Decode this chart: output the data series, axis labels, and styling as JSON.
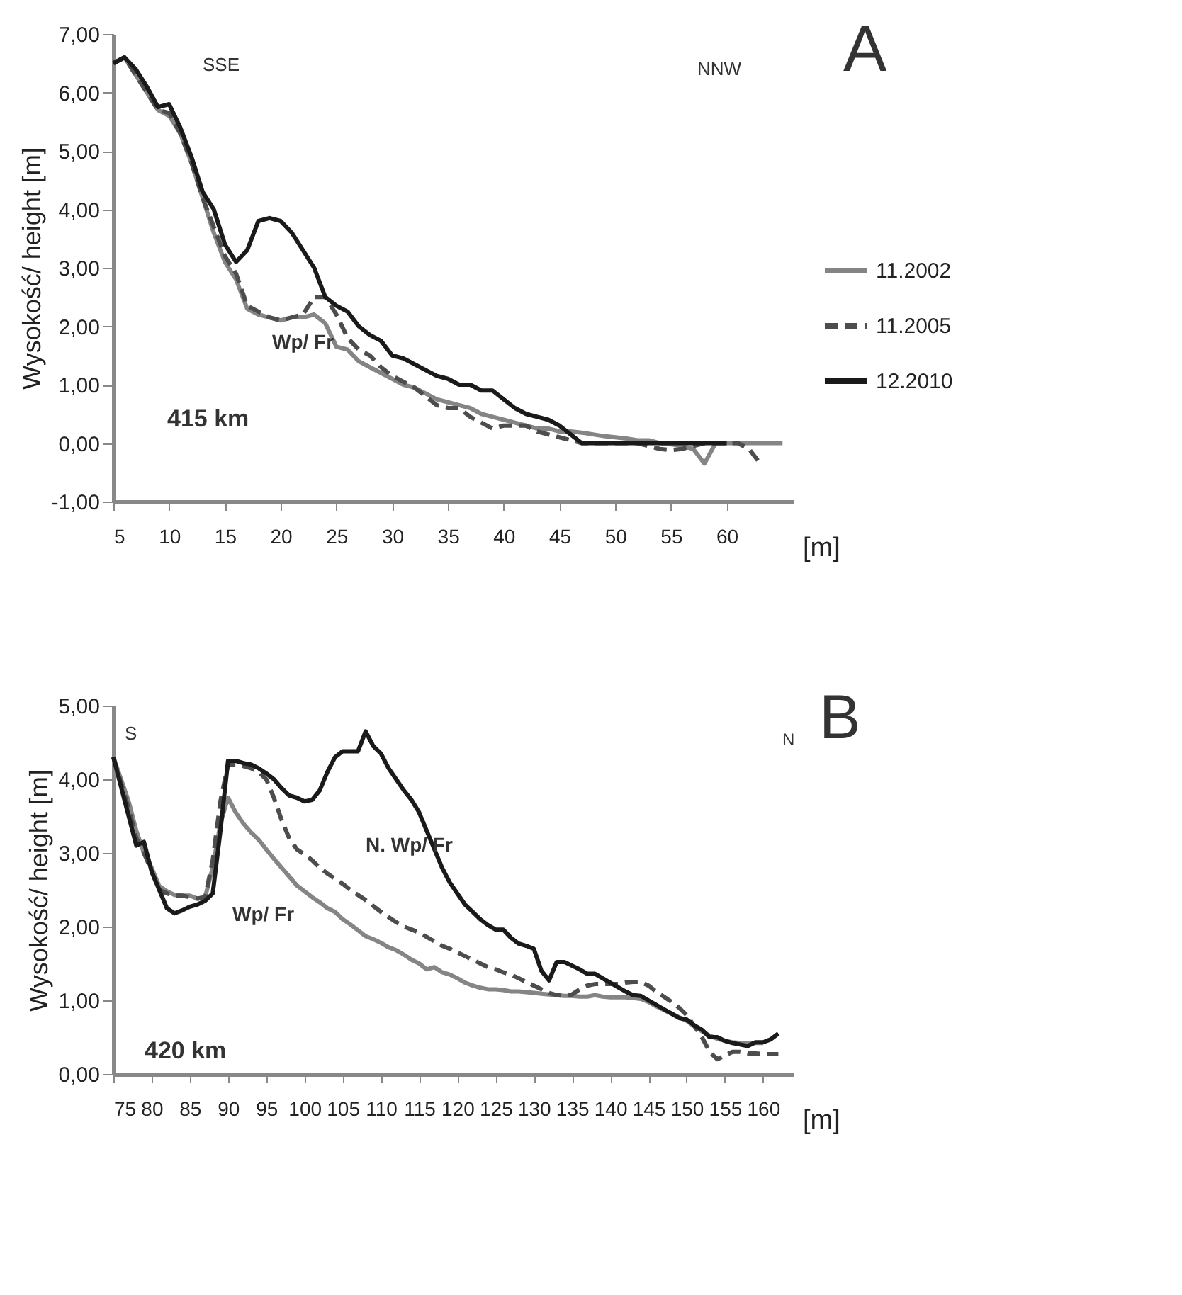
{
  "chart_data": [
    {
      "type": "line",
      "xlabel": "[m]",
      "ylabel": "Wysokość/ height [m]",
      "annotations": [
        "SSE",
        "NNW",
        "A",
        "Wp/ Fr",
        "415 km"
      ],
      "x": [
        5,
        6,
        7,
        8,
        9,
        10,
        11,
        12,
        13,
        14,
        15,
        16,
        17,
        18,
        19,
        20,
        21,
        22,
        23,
        24,
        25,
        26,
        27,
        28,
        29,
        30,
        31,
        32,
        33,
        34,
        35,
        36,
        37,
        38,
        39,
        40,
        41,
        42,
        43,
        44,
        45,
        46,
        47,
        48,
        49,
        50,
        51,
        52,
        53,
        54,
        55,
        56,
        57,
        58,
        59,
        60,
        61,
        62,
        63,
        64,
        65
      ],
      "xlim": [
        5,
        66
      ],
      "xticks": [
        5,
        10,
        15,
        20,
        25,
        30,
        35,
        40,
        45,
        50,
        55,
        60
      ],
      "ylim": [
        -1,
        7
      ],
      "yticks": [
        {
          "value": -1,
          "label": "-1,00"
        },
        {
          "value": 0,
          "label": "0,00"
        },
        {
          "value": 1,
          "label": "1,00"
        },
        {
          "value": 2,
          "label": "2,00"
        },
        {
          "value": 3,
          "label": "3,00"
        },
        {
          "value": 4,
          "label": "4,00"
        },
        {
          "value": 5,
          "label": "5,00"
        },
        {
          "value": 6,
          "label": "6,00"
        },
        {
          "value": 7,
          "label": "7,00"
        }
      ],
      "legend": "right",
      "grid": false,
      "series": [
        {
          "name": "11.2002",
          "color": "#858585",
          "line_style": "solid",
          "values": [
            6.5,
            6.6,
            6.3,
            6.0,
            5.7,
            5.6,
            5.3,
            4.8,
            4.2,
            3.6,
            3.1,
            2.8,
            2.3,
            2.2,
            2.15,
            2.1,
            2.15,
            2.15,
            2.2,
            2.05,
            1.65,
            1.6,
            1.4,
            1.3,
            1.2,
            1.1,
            1.0,
            0.95,
            0.85,
            0.75,
            0.7,
            0.65,
            0.6,
            0.5,
            0.45,
            0.4,
            0.35,
            0.3,
            0.25,
            0.25,
            0.2,
            0.2,
            0.18,
            0.15,
            0.12,
            0.1,
            0.08,
            0.05,
            0.05,
            0,
            -0.02,
            -0.05,
            -0.1,
            -0.35,
            0,
            0,
            0,
            0,
            0,
            0,
            0
          ]
        },
        {
          "name": "11.2005",
          "color": "#4d4d4d",
          "line_style": "dashed",
          "values": [
            6.5,
            6.6,
            6.3,
            6.0,
            5.7,
            5.65,
            5.3,
            4.8,
            4.2,
            3.7,
            3.2,
            2.9,
            2.35,
            2.25,
            2.15,
            2.1,
            2.15,
            2.2,
            2.5,
            2.5,
            2.2,
            1.8,
            1.6,
            1.5,
            1.3,
            1.15,
            1.05,
            0.95,
            0.8,
            0.65,
            0.6,
            0.6,
            0.45,
            0.35,
            0.25,
            0.3,
            0.3,
            0.3,
            0.2,
            0.15,
            0.1,
            0.05,
            0,
            0,
            0,
            0,
            0,
            0,
            -0.05,
            -0.1,
            -0.12,
            -0.1,
            -0.05,
            0,
            0,
            0,
            0,
            -0.1,
            -0.35,
            null,
            null
          ]
        },
        {
          "name": "12.2010",
          "color": "#1a1a1a",
          "line_style": "solid",
          "values": [
            6.5,
            6.6,
            6.4,
            6.1,
            5.75,
            5.8,
            5.4,
            4.9,
            4.3,
            4.0,
            3.4,
            3.1,
            3.3,
            3.8,
            3.85,
            3.8,
            3.6,
            3.3,
            3.0,
            2.5,
            2.35,
            2.25,
            2.0,
            1.85,
            1.75,
            1.5,
            1.45,
            1.35,
            1.25,
            1.15,
            1.1,
            1.0,
            1.0,
            0.9,
            0.9,
            0.75,
            0.6,
            0.5,
            0.45,
            0.4,
            0.3,
            0.15,
            0,
            0,
            0,
            0,
            0,
            0,
            0,
            0,
            0,
            0,
            0,
            0,
            0,
            0,
            null,
            null,
            null,
            null,
            null
          ]
        }
      ]
    },
    {
      "type": "line",
      "xlabel": "[m]",
      "ylabel": "Wysokość/ height [m]",
      "annotations": [
        "S",
        "N",
        "B",
        "N. Wp/ Fr",
        "Wp/ Fr",
        "420 km"
      ],
      "x": [
        75,
        76,
        77,
        78,
        79,
        80,
        81,
        82,
        83,
        84,
        85,
        86,
        87,
        88,
        89,
        90,
        91,
        92,
        93,
        94,
        95,
        96,
        97,
        98,
        99,
        100,
        101,
        102,
        103,
        104,
        105,
        106,
        107,
        108,
        109,
        110,
        111,
        112,
        113,
        114,
        115,
        116,
        117,
        118,
        119,
        120,
        121,
        122,
        123,
        124,
        125,
        126,
        127,
        128,
        129,
        130,
        131,
        132,
        133,
        134,
        135,
        136,
        137,
        138,
        139,
        140,
        141,
        142,
        143,
        144,
        145,
        146,
        147,
        148,
        149,
        150,
        151,
        152,
        153,
        154,
        155,
        156,
        157,
        158,
        159,
        160,
        161,
        162
      ],
      "xlim": [
        75,
        164
      ],
      "xticks": [
        75,
        80,
        85,
        90,
        95,
        100,
        105,
        110,
        115,
        120,
        125,
        130,
        135,
        140,
        145,
        150,
        155,
        160
      ],
      "ylim": [
        0,
        5
      ],
      "yticks": [
        {
          "value": 0,
          "label": "0,00"
        },
        {
          "value": 1,
          "label": "1,00"
        },
        {
          "value": 2,
          "label": "2,00"
        },
        {
          "value": 3,
          "label": "3,00"
        },
        {
          "value": 4,
          "label": "4,00"
        },
        {
          "value": 5,
          "label": "5,00"
        }
      ],
      "legend": "right",
      "grid": false,
      "series": [
        {
          "name": "11.2002",
          "color": "#858585",
          "line_style": "solid",
          "values": [
            4.3,
            4.0,
            3.7,
            3.3,
            3.0,
            2.8,
            2.55,
            2.48,
            2.43,
            2.42,
            2.42,
            2.38,
            2.4,
            2.8,
            3.4,
            3.75,
            3.55,
            3.4,
            3.28,
            3.18,
            3.05,
            2.92,
            2.8,
            2.68,
            2.56,
            2.48,
            2.4,
            2.33,
            2.25,
            2.2,
            2.1,
            2.03,
            1.95,
            1.87,
            1.83,
            1.78,
            1.72,
            1.68,
            1.62,
            1.55,
            1.5,
            1.42,
            1.45,
            1.38,
            1.35,
            1.3,
            1.24,
            1.2,
            1.17,
            1.15,
            1.15,
            1.14,
            1.12,
            1.12,
            1.11,
            1.1,
            1.09,
            1.08,
            1.07,
            1.06,
            1.06,
            1.05,
            1.05,
            1.07,
            1.05,
            1.04,
            1.04,
            1.04,
            1.03,
            1.02,
            0.98,
            0.92,
            0.87,
            0.82,
            0.77,
            0.72,
            0.65,
            0.58,
            0.52,
            0.48,
            0.45,
            0.43,
            0.42,
            0.42,
            0.42,
            0.42,
            null,
            null
          ]
        },
        {
          "name": "11.2005",
          "color": "#4d4d4d",
          "line_style": "dashed",
          "values": [
            4.3,
            3.95,
            3.6,
            3.2,
            3.0,
            2.75,
            2.5,
            2.45,
            2.42,
            2.42,
            2.4,
            2.38,
            2.4,
            2.9,
            3.7,
            4.2,
            4.2,
            4.18,
            4.15,
            4.1,
            4.0,
            3.75,
            3.45,
            3.2,
            3.05,
            2.98,
            2.9,
            2.8,
            2.72,
            2.65,
            2.58,
            2.5,
            2.43,
            2.36,
            2.28,
            2.2,
            2.13,
            2.06,
            2.0,
            1.96,
            1.92,
            1.86,
            1.8,
            1.74,
            1.7,
            1.65,
            1.6,
            1.55,
            1.5,
            1.45,
            1.42,
            1.38,
            1.35,
            1.3,
            1.25,
            1.2,
            1.15,
            1.1,
            1.07,
            1.06,
            1.08,
            1.15,
            1.2,
            1.22,
            1.22,
            1.22,
            1.22,
            1.24,
            1.25,
            1.25,
            1.2,
            1.12,
            1.05,
            0.98,
            0.9,
            0.8,
            0.65,
            0.5,
            0.3,
            0.2,
            0.25,
            0.3,
            0.3,
            0.28,
            0.28,
            0.27,
            0.27,
            0.27
          ]
        },
        {
          "name": "12.2010",
          "color": "#1a1a1a",
          "line_style": "solid",
          "values": [
            4.3,
            3.9,
            3.5,
            3.1,
            3.15,
            2.75,
            2.5,
            2.25,
            2.18,
            2.22,
            2.27,
            2.3,
            2.35,
            2.45,
            3.3,
            4.25,
            4.25,
            4.22,
            4.2,
            4.15,
            4.08,
            4.0,
            3.88,
            3.78,
            3.75,
            3.7,
            3.72,
            3.85,
            4.1,
            4.3,
            4.38,
            4.38,
            4.38,
            4.65,
            4.45,
            4.35,
            4.15,
            4.0,
            3.85,
            3.72,
            3.55,
            3.3,
            3.05,
            2.8,
            2.6,
            2.45,
            2.3,
            2.2,
            2.1,
            2.02,
            1.96,
            1.96,
            1.85,
            1.77,
            1.74,
            1.7,
            1.4,
            1.27,
            1.52,
            1.52,
            1.47,
            1.42,
            1.36,
            1.36,
            1.3,
            1.24,
            1.18,
            1.12,
            1.07,
            1.06,
            1.0,
            0.94,
            0.88,
            0.82,
            0.76,
            0.74,
            0.66,
            0.6,
            0.5,
            0.5,
            0.45,
            0.42,
            0.4,
            0.38,
            0.43,
            0.43,
            0.47,
            0.55
          ]
        }
      ]
    }
  ]
}
